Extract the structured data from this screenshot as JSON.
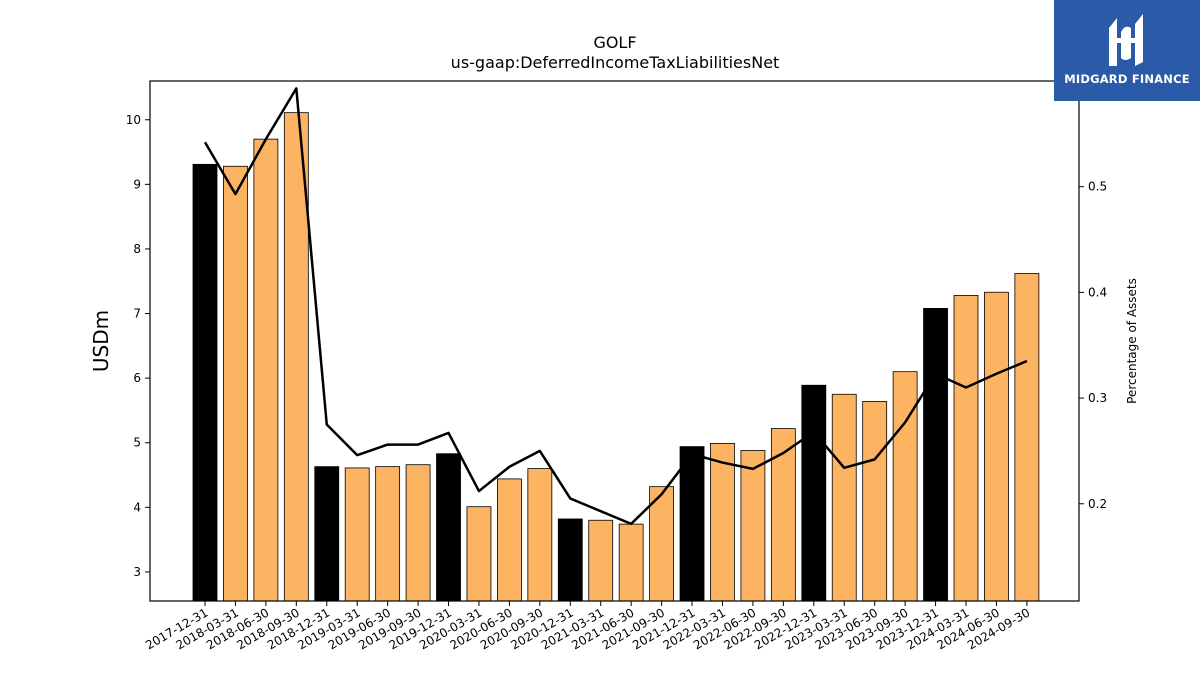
{
  "chart_data": {
    "type": "bar",
    "title": "GOLF",
    "subtitle": "us-gaap:DeferredIncomeTaxLiabilitiesNet",
    "ylabel": "USDm",
    "ylabel_right": "Percentage of Assets",
    "ylim": [
      2.55,
      10.6
    ],
    "ylim_right": [
      0.108,
      0.6
    ],
    "yticks": [
      3,
      4,
      5,
      6,
      7,
      8,
      9,
      10
    ],
    "yticks_right": [
      0.2,
      0.3,
      0.4,
      0.5
    ],
    "categories": [
      "2017-12-31",
      "2018-03-31",
      "2018-06-30",
      "2018-09-30",
      "2018-12-31",
      "2019-03-31",
      "2019-06-30",
      "2019-09-30",
      "2019-12-31",
      "2020-03-31",
      "2020-06-30",
      "2020-09-30",
      "2020-12-31",
      "2021-03-31",
      "2021-06-30",
      "2021-09-30",
      "2021-12-31",
      "2022-03-31",
      "2022-06-30",
      "2022-09-30",
      "2022-12-31",
      "2023-03-31",
      "2023-06-30",
      "2023-09-30",
      "2023-12-31",
      "2024-03-31",
      "2024-06-30",
      "2024-09-30"
    ],
    "series": [
      {
        "type": "bar",
        "values": [
          9.31,
          9.28,
          9.7,
          10.11,
          4.63,
          4.61,
          4.63,
          4.66,
          4.83,
          4.01,
          4.44,
          4.6,
          3.82,
          3.8,
          3.74,
          4.32,
          4.94,
          4.99,
          4.88,
          5.22,
          5.89,
          5.75,
          5.64,
          6.1,
          7.08,
          7.28,
          7.33,
          7.62
        ],
        "highlight": [
          true,
          false,
          false,
          false,
          true,
          false,
          false,
          false,
          true,
          false,
          false,
          false,
          true,
          false,
          false,
          false,
          true,
          false,
          false,
          false,
          true,
          false,
          false,
          false,
          true,
          false,
          false,
          false
        ]
      },
      {
        "type": "line",
        "axis": "right",
        "values": [
          0.542,
          0.493,
          0.545,
          0.593,
          0.275,
          0.246,
          0.256,
          0.256,
          0.267,
          0.212,
          0.235,
          0.25,
          0.205,
          0.193,
          0.181,
          0.209,
          0.247,
          0.239,
          0.233,
          0.248,
          0.268,
          0.234,
          0.242,
          0.277,
          0.323,
          0.31,
          0.323,
          0.335
        ]
      }
    ],
    "colors": {
      "bar": "#fdb462",
      "bar_highlight": "#000000",
      "line": "#000000",
      "edge": "#000000"
    },
    "grid": false,
    "legend": "none"
  },
  "logo": {
    "text": "MIDGARD FINANCE",
    "icon": "midgard-logo-icon",
    "background": "#2b5aa8"
  }
}
